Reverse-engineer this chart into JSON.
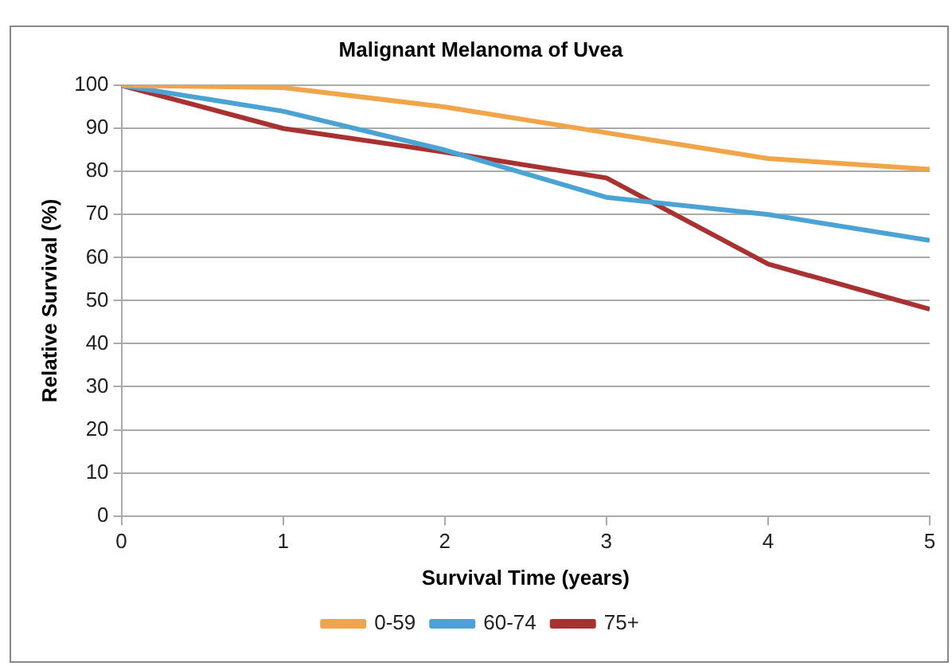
{
  "chart_data": {
    "type": "line",
    "title": "Malignant Melanoma of Uvea",
    "xlabel": "Survival Time (years)",
    "ylabel": "Relative Survival (%)",
    "x": [
      0,
      1,
      2,
      3,
      4,
      5
    ],
    "series": [
      {
        "name": "0-59",
        "color": "#f0a54a",
        "values": [
          100,
          99.5,
          95,
          89,
          83,
          80.5
        ]
      },
      {
        "name": "60-74",
        "color": "#4ba3d3",
        "values": [
          100,
          94,
          85,
          74,
          70,
          64
        ]
      },
      {
        "name": "75+",
        "color": "#a83232",
        "values": [
          100,
          90,
          84.5,
          78.5,
          58.5,
          48
        ]
      }
    ],
    "xlim": [
      0,
      5
    ],
    "xticks": [
      0,
      1,
      2,
      3,
      4,
      5
    ],
    "ylim": [
      0,
      100
    ],
    "yticks": [
      0,
      10,
      20,
      30,
      40,
      50,
      60,
      70,
      80,
      90,
      100
    ],
    "grid": "y",
    "legend": "bottom",
    "marker": "none",
    "line_style": "solid"
  }
}
